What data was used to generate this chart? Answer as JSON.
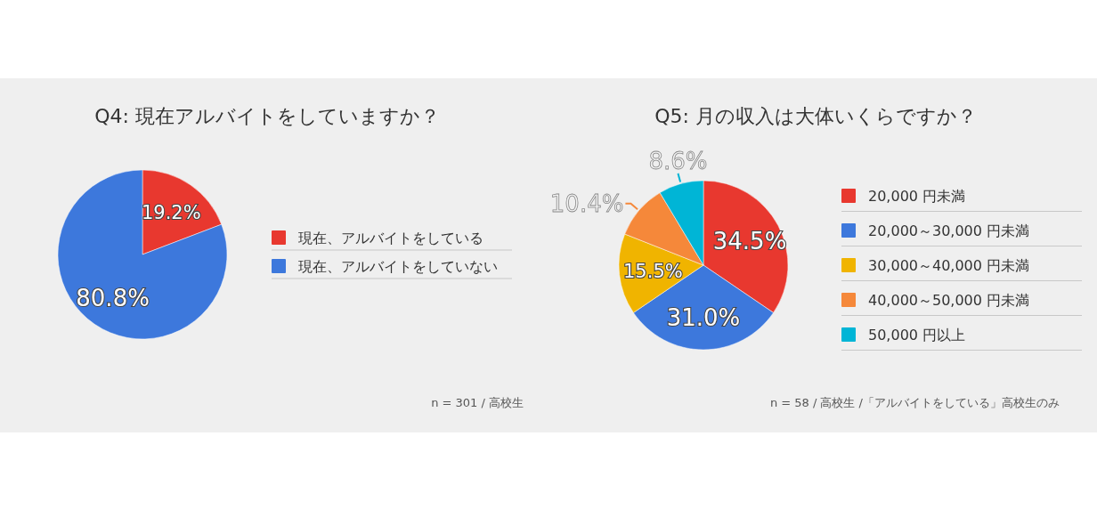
{
  "chart_data": [
    {
      "type": "pie",
      "title": "Q4: 現在アルバイトをしていますか？",
      "categories": [
        "現在、アルバイトをしている",
        "現在、アルバイトをしていない"
      ],
      "values": [
        19.2,
        80.8
      ],
      "colors": [
        "#e8382f",
        "#3d78dc"
      ],
      "value_labels": [
        "19.2%",
        "80.8%"
      ],
      "legend": "right",
      "annotations": [
        "n = 301 / 高校生"
      ]
    },
    {
      "type": "pie",
      "title": "Q5: 月の収入は大体いくらですか？",
      "categories": [
        "20,000 円未満",
        "20,000～30,000 円未満",
        "30,000～40,000 円未満",
        "40,000～50,000 円未満",
        "50,000 円以上"
      ],
      "values": [
        34.5,
        31.0,
        15.5,
        10.4,
        8.6
      ],
      "colors": [
        "#e8382f",
        "#3d78dc",
        "#f0b400",
        "#f5883a",
        "#00b5d6"
      ],
      "value_labels": [
        "34.5%",
        "31.0%",
        "15.5%",
        "10.4%",
        "8.6%"
      ],
      "legend": "right",
      "annotations": [
        "n = 58 / 高校生 /「アルバイトをしている」高校生のみ"
      ]
    }
  ]
}
